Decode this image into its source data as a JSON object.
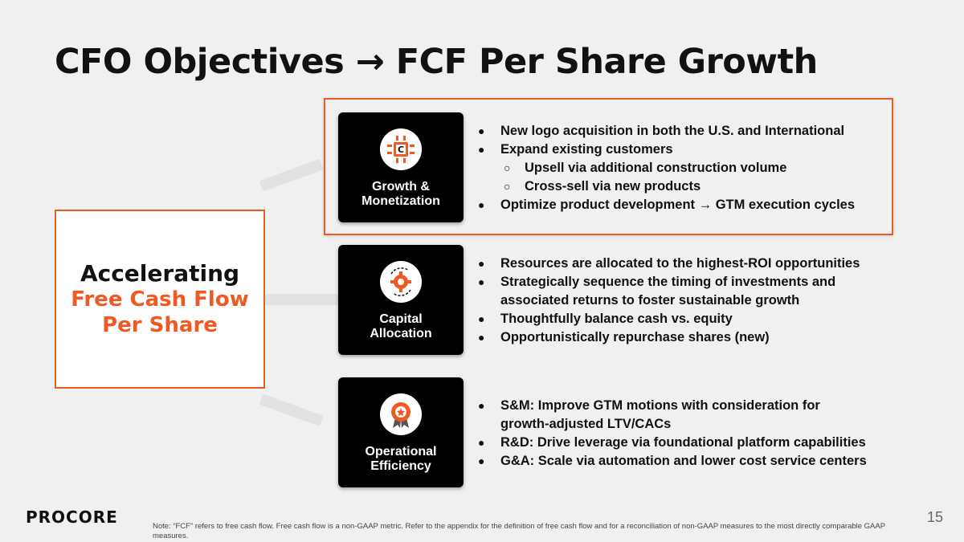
{
  "title": "CFO Objectives → FCF Per Share Growth",
  "left_card": {
    "line1": "Accelerating",
    "line2": "Free Cash Flow",
    "line3": "Per Share"
  },
  "pillars": [
    {
      "label": "Growth &\nMonetization",
      "icon": "chip-icon",
      "bullets": [
        {
          "text": "New logo acquisition in both the U.S. and International",
          "level": 1
        },
        {
          "text": "Expand existing customers",
          "level": 1
        },
        {
          "text": "Upsell via additional construction volume",
          "level": 2
        },
        {
          "text": "Cross-sell via new products",
          "level": 2
        },
        {
          "text": "Optimize product development → GTM execution cycles",
          "level": 1
        }
      ]
    },
    {
      "label": "Capital\nAllocation",
      "icon": "gear-cycle-icon",
      "bullets": [
        {
          "text": "Resources are allocated to the highest-ROI opportunities",
          "level": 1
        },
        {
          "text": "Strategically sequence the timing of investments and associated returns to foster sustainable growth",
          "level": 1
        },
        {
          "text": "Thoughtfully balance cash vs. equity",
          "level": 1
        },
        {
          "text": "Opportunistically repurchase shares (new)",
          "level": 1
        }
      ]
    },
    {
      "label": "Operational\nEfficiency",
      "icon": "award-badge-icon",
      "bullets": [
        {
          "text": "S&M: Improve GTM motions with consideration for growth-adjusted LTV/CACs",
          "level": 1
        },
        {
          "text": "R&D: Drive leverage via foundational platform capabilities",
          "level": 1
        },
        {
          "text": "G&A: Scale via automation and lower cost service centers",
          "level": 1
        }
      ]
    }
  ],
  "logo_text": "PROCORE",
  "page_number": "15",
  "footnote": "Note: “FCF” refers to free cash flow. Free cash flow is a non-GAAP metric. Refer to the appendix for the definition of free cash flow and for a reconciliation of non-GAAP measures to the most directly comparable GAAP measures.",
  "colors": {
    "accent": "#f05a22",
    "tile_bg": "#000000",
    "page_bg": "#f0f0f0"
  }
}
